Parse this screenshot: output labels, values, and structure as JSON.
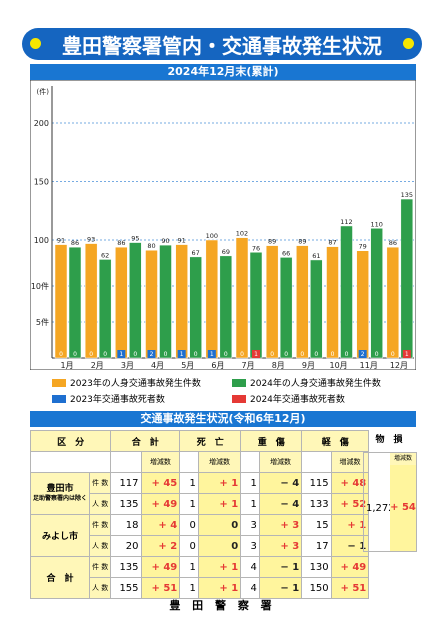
{
  "title": "豊田警察署管内・交通事故発生状況",
  "chart_subtitle": "2024年12月末(累計)",
  "chart_data": {
    "type": "bar",
    "yunit": "(件)",
    "categories": [
      "1月",
      "2月",
      "3月",
      "4月",
      "5月",
      "6月",
      "7月",
      "8月",
      "9月",
      "10月",
      "11月",
      "12月"
    ],
    "y_ticks": [
      "5件",
      "10件",
      "100",
      "150",
      "200"
    ],
    "series": [
      {
        "name": "2023年の人身交通事故発生件数",
        "color": "#f5a623",
        "values": [
          91,
          93,
          86,
          80,
          91,
          100,
          102,
          89,
          89,
          87,
          79,
          86
        ]
      },
      {
        "name": "2024年の人身交通事故発生件数",
        "color": "#2e9e4b",
        "values": [
          86,
          62,
          95,
          90,
          67,
          69,
          76,
          66,
          61,
          112,
          110,
          135
        ]
      },
      {
        "name": "2023年交通事故死者数",
        "color": "#1e6fd0",
        "values": [
          0,
          0,
          1,
          2,
          1,
          1,
          0,
          0,
          0,
          0,
          2,
          0
        ]
      },
      {
        "name": "2024年交通事故死者数",
        "color": "#e53935",
        "values": [
          0,
          0,
          0,
          0,
          0,
          0,
          1,
          0,
          0,
          0,
          0,
          1
        ]
      }
    ]
  },
  "table": {
    "title": "交通事故発生状況(令和6年12月)",
    "headers": {
      "category": "区　分",
      "total": "合　計",
      "death": "死　亡",
      "serious": "重　傷",
      "minor": "軽　傷",
      "damage": "物　損",
      "change": "増減数"
    },
    "groups": [
      {
        "name": "豊田市",
        "note": "足助警察署内は除く",
        "rows": [
          {
            "unit": "件 数",
            "total": "117",
            "total_chg": "+ 45",
            "death": "1",
            "death_chg": "+ 1",
            "serious": "1",
            "serious_chg": "− 4",
            "minor": "115",
            "minor_chg": "+ 48"
          },
          {
            "unit": "人 数",
            "total": "135",
            "total_chg": "+ 49",
            "death": "1",
            "death_chg": "+ 1",
            "serious": "1",
            "serious_chg": "− 4",
            "minor": "133",
            "minor_chg": "+ 52"
          }
        ]
      },
      {
        "name": "みよし市",
        "note": "",
        "rows": [
          {
            "unit": "件 数",
            "total": "18",
            "total_chg": "+ 4",
            "death": "0",
            "death_chg": "0",
            "serious": "3",
            "serious_chg": "+ 3",
            "minor": "15",
            "minor_chg": "+ 1"
          },
          {
            "unit": "人 数",
            "total": "20",
            "total_chg": "+ 2",
            "death": "0",
            "death_chg": "0",
            "serious": "3",
            "serious_chg": "+ 3",
            "minor": "17",
            "minor_chg": "− 1"
          }
        ]
      },
      {
        "name": "合　計",
        "note": "",
        "rows": [
          {
            "unit": "件 数",
            "total": "135",
            "total_chg": "+ 49",
            "death": "1",
            "death_chg": "+ 1",
            "serious": "4",
            "serious_chg": "− 1",
            "minor": "130",
            "minor_chg": "+ 49"
          },
          {
            "unit": "人 数",
            "total": "155",
            "total_chg": "+ 51",
            "death": "1",
            "death_chg": "+ 1",
            "serious": "4",
            "serious_chg": "− 1",
            "minor": "150",
            "minor_chg": "+ 51"
          }
        ]
      }
    ],
    "damage": {
      "value": "1,272",
      "change": "+ 54"
    }
  },
  "footer": "豊 田 警 察 署"
}
